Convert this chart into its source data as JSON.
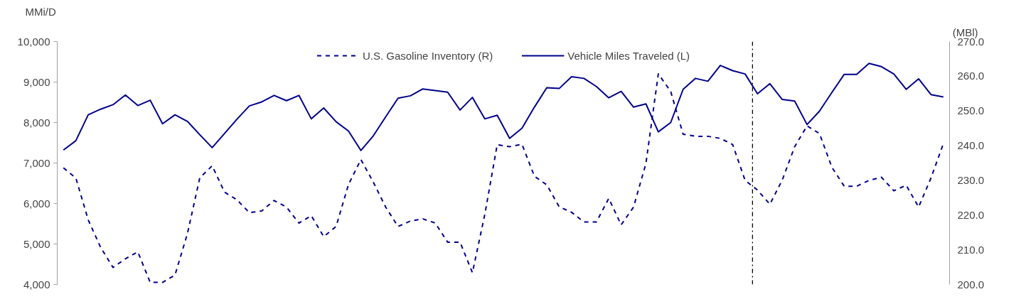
{
  "chart_data": {
    "type": "line",
    "ylabel": "MMi/D",
    "y2label": "(MBl)",
    "categories": [
      null,
      null,
      null,
      null,
      null,
      null,
      null,
      null,
      null,
      null,
      null,
      null,
      null,
      null,
      null,
      null,
      null,
      null,
      null,
      null,
      null,
      null,
      null,
      null,
      null,
      null,
      null,
      null,
      null,
      null,
      null,
      null,
      null,
      null,
      null,
      null,
      null,
      null,
      null,
      null,
      null,
      null,
      null,
      null,
      null,
      null,
      null,
      null,
      null,
      null,
      null,
      null,
      null,
      null,
      null,
      null,
      null,
      null,
      null,
      null,
      null,
      null,
      null,
      null,
      null,
      null,
      null,
      null,
      null,
      null,
      null,
      null
    ],
    "ylim": [
      4000,
      10000
    ],
    "yticks": [
      {
        "value": 4000,
        "label": "4,000"
      },
      {
        "value": 5000,
        "label": "5,000"
      },
      {
        "value": 6000,
        "label": "6,000"
      },
      {
        "value": 7000,
        "label": "7,000"
      },
      {
        "value": 8000,
        "label": "8,000"
      },
      {
        "value": 9000,
        "label": "9,000"
      },
      {
        "value": 10000,
        "label": "10,000"
      }
    ],
    "y2lim": [
      200,
      270
    ],
    "y2ticks": [
      {
        "value": 200,
        "label": "200.0"
      },
      {
        "value": 210,
        "label": "210.0"
      },
      {
        "value": 220,
        "label": "220.0"
      },
      {
        "value": 230,
        "label": "230.0"
      },
      {
        "value": 240,
        "label": "240.0"
      },
      {
        "value": 250,
        "label": "250.0"
      },
      {
        "value": 260,
        "label": "260.0"
      },
      {
        "value": 270,
        "label": "270.0"
      }
    ],
    "series": [
      {
        "name": "U.S. Gasoline Inventory (R)",
        "color": "#00008b",
        "axis": "y2",
        "line_style": "dashed",
        "values": [
          233.6,
          230.7,
          218.6,
          210.7,
          204.9,
          207.4,
          209.4,
          200.6,
          200.6,
          202.7,
          214.6,
          230.7,
          234.2,
          226.6,
          224.4,
          220.7,
          221.2,
          224.2,
          222.3,
          217.7,
          219.8,
          213.8,
          216.7,
          228.8,
          236.0,
          229.5,
          222.3,
          216.7,
          218.3,
          218.9,
          217.7,
          212.2,
          212.2,
          203.4,
          220.2,
          240.3,
          239.7,
          240.4,
          231.2,
          228.7,
          222.4,
          220.8,
          218.0,
          218.0,
          224.8,
          217.2,
          222.3,
          234.9,
          260.7,
          255.6,
          243.3,
          242.7,
          242.7,
          242.1,
          240.3,
          230.0,
          227.2,
          223.1,
          230.1,
          239.7,
          245.7,
          243.5,
          233.8,
          228.3,
          228.3,
          230.0,
          230.9,
          227.0,
          228.6,
          222.3,
          230.7,
          240.6
        ]
      },
      {
        "name": "Vehicle Miles Traveled (L)",
        "color": "#00008b",
        "line_style": "solid",
        "values": [
          7320,
          7550,
          8190,
          8330,
          8440,
          8680,
          8420,
          8550,
          7970,
          8190,
          8030,
          7700,
          7380,
          7730,
          8080,
          8410,
          8510,
          8670,
          8540,
          8670,
          8090,
          8360,
          8020,
          7790,
          7310,
          7670,
          8140,
          8600,
          8660,
          8830,
          8790,
          8750,
          8310,
          8620,
          8090,
          8180,
          7610,
          7860,
          8380,
          8860,
          8840,
          9130,
          9090,
          8890,
          8610,
          8770,
          8380,
          8460,
          7770,
          8000,
          8820,
          9090,
          9020,
          9410,
          9280,
          9200,
          8710,
          8960,
          8570,
          8530,
          7950,
          8280,
          8740,
          9190,
          9190,
          9460,
          9380,
          9200,
          8820,
          9080,
          8690,
          8630
        ]
      }
    ],
    "legend": "top",
    "grid": false,
    "marker": "none"
  }
}
